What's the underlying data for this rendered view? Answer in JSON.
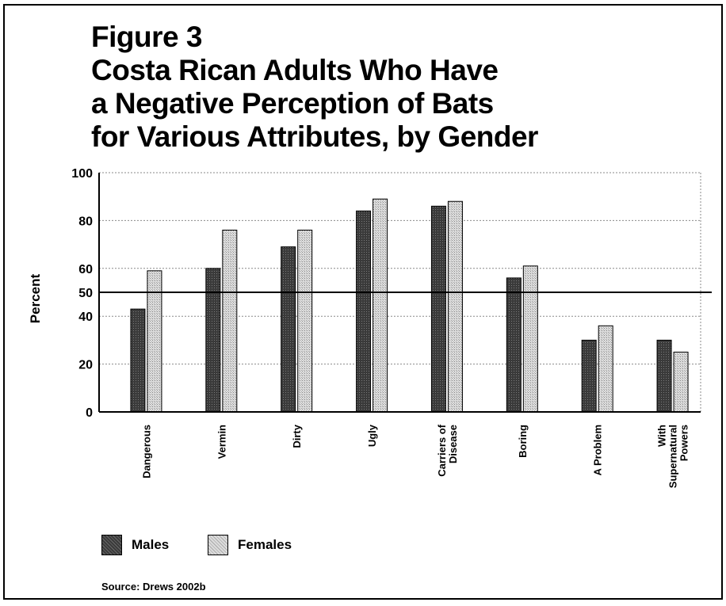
{
  "figure_label": "Figure 3",
  "title_lines": [
    "Costa Rican Adults Who Have",
    "a Negative Perception of Bats",
    "for Various Attributes, by Gender"
  ],
  "source": "Source: Drews 2002b",
  "chart_data": {
    "type": "bar",
    "title": "Costa Rican Adults Who Have a Negative Perception of Bats for Various Attributes, by Gender",
    "ylabel": "Percent",
    "xlabel": "",
    "ylim": [
      0,
      100
    ],
    "yticks": [
      0,
      20,
      40,
      50,
      60,
      80,
      100
    ],
    "reference_line": 50,
    "grid": true,
    "legend_position": "bottom-left",
    "categories": [
      [
        "Dangerous"
      ],
      [
        "Vermin"
      ],
      [
        "Dirty"
      ],
      [
        "Ugly"
      ],
      [
        "Carriers of",
        "Disease"
      ],
      [
        "Boring"
      ],
      [
        "A Problem"
      ],
      [
        "With",
        "Supernatural",
        "Powers"
      ]
    ],
    "series": [
      {
        "name": "Males",
        "color": "#3a3a3a",
        "values": [
          43,
          60,
          69,
          84,
          86,
          56,
          30,
          30
        ]
      },
      {
        "name": "Females",
        "color": "#dcdcdc",
        "values": [
          59,
          76,
          76,
          89,
          88,
          61,
          36,
          25
        ]
      }
    ]
  }
}
